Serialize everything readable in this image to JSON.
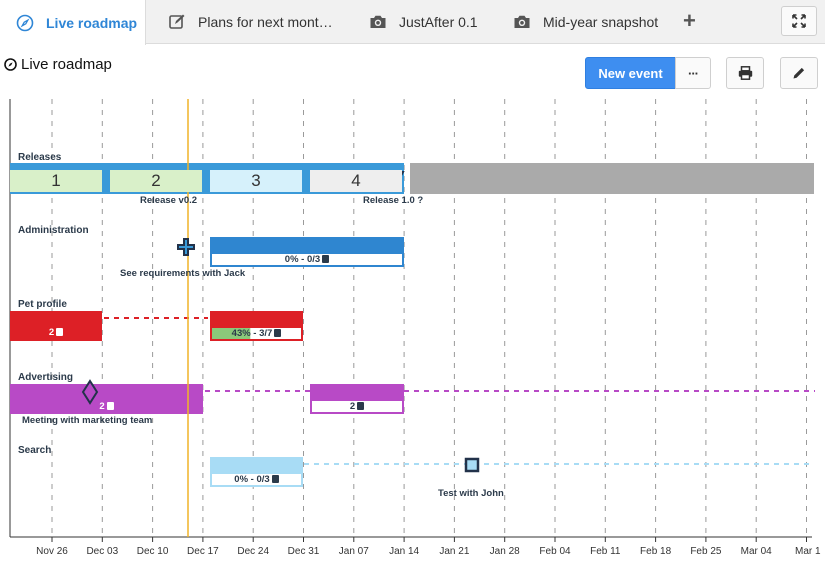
{
  "tabs": [
    {
      "label": "Live roadmap",
      "icon": "compass-icon"
    },
    {
      "label": "Plans for next mont…",
      "icon": "edit-icon"
    },
    {
      "label": "JustAfter 0.1",
      "icon": "camera-icon"
    },
    {
      "label": "Mid-year snapshot",
      "icon": "camera-icon"
    }
  ],
  "header": {
    "title": "Live roadmap",
    "new_event_label": "New event",
    "more_label": "···"
  },
  "timeline": {
    "lanes": [
      "Releases",
      "Administration",
      "Pet profile",
      "Advertising",
      "Search"
    ],
    "axis_dates": [
      "Nov 26",
      "Dec 03",
      "Dec 10",
      "Dec 17",
      "Dec 24",
      "Dec 31",
      "Jan 07",
      "Jan 14",
      "Jan 21",
      "Jan 28",
      "Feb 04",
      "Feb 11",
      "Feb 18",
      "Feb 25",
      "Mar 04",
      "Mar 1"
    ],
    "sprints": [
      "1",
      "2",
      "3",
      "4"
    ],
    "milestones": {
      "release_v02": "Release v0.2",
      "release_10": "Release 1.0 ?",
      "see_requirements": "See requirements with Jack",
      "meeting_marketing": "Meeting with marketing team",
      "test_with_john": "Test with John"
    },
    "bars": {
      "admin_progress": "0% - 0/3",
      "pet_first_count": "2",
      "pet_second_progress": "43% - 3/7",
      "pet_second_percent": 43,
      "adv_first_count": "2",
      "adv_second_count": "2",
      "search_progress": "0% - 0/3"
    }
  },
  "colors": {
    "accent": "#3e8ef0",
    "today_line": "#f0b429",
    "release_blue": "#3a9ad9",
    "admin_blue": "#2f86d0",
    "pet_red": "#dd2026",
    "adv_purple": "#b84ac6",
    "search_lightblue": "#a8dcf5",
    "future_gray": "#aaaaaa"
  }
}
